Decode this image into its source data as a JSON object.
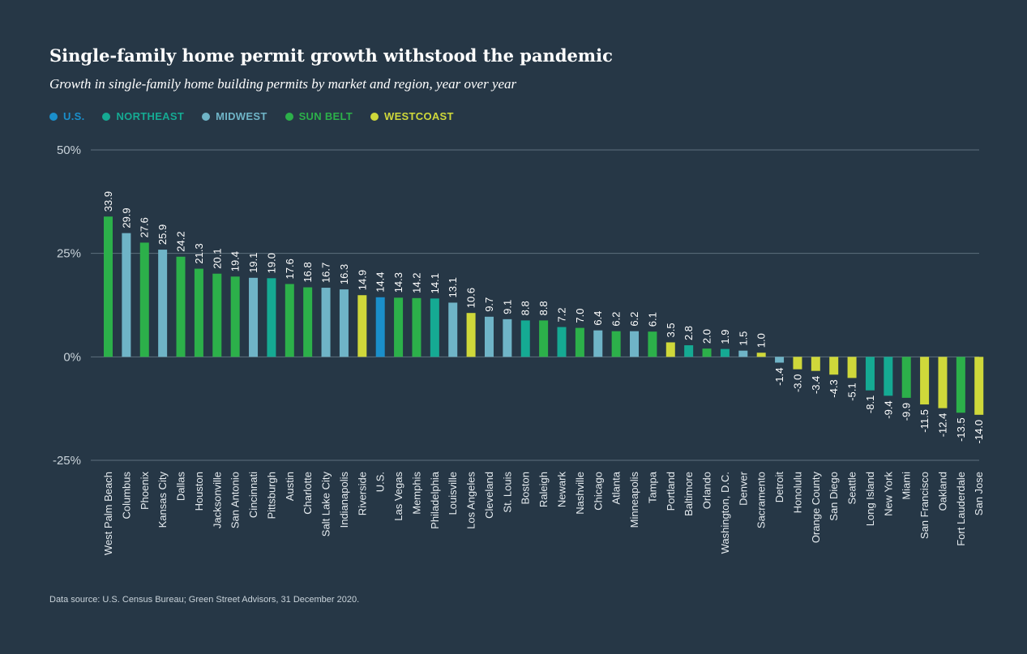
{
  "chart_data": {
    "type": "bar",
    "title": "Single-family home permit growth withstood the pandemic",
    "subtitle": "Growth in single-family home building permits by market and region, year over year",
    "source": "Data source: U.S. Census Bureau; Green Street Advisors, 31 December 2020.",
    "ylim": [
      -25,
      50
    ],
    "yticks": [
      50,
      25,
      0,
      -25
    ],
    "ytick_labels": [
      "50%",
      "25%",
      "0%",
      "-25%"
    ],
    "grid": true,
    "legend_placement": "top-left",
    "legend": [
      {
        "key": "us",
        "label": "U.S.",
        "color": "#1a8fcb"
      },
      {
        "key": "northeast",
        "label": "NORTHEAST",
        "color": "#15aa93"
      },
      {
        "key": "midwest",
        "label": "MIDWEST",
        "color": "#6fb4c7"
      },
      {
        "key": "sunbelt",
        "label": "SUN BELT",
        "color": "#2cb04a"
      },
      {
        "key": "westcoast",
        "label": "WESTCOAST",
        "color": "#cfd83a"
      }
    ],
    "categories": [
      "West Palm Beach",
      "Columbus",
      "Phoenix",
      "Kansas City",
      "Dallas",
      "Houston",
      "Jacksonville",
      "San Antonio",
      "Cincinnati",
      "Pittsburgh",
      "Austin",
      "Charlotte",
      "Salt Lake City",
      "Indianapolis",
      "Riverside",
      "U.S.",
      "Las Vegas",
      "Memphis",
      "Philadelphia",
      "Louisville",
      "Los Angeles",
      "Cleveland",
      "St. Louis",
      "Boston",
      "Raleigh",
      "Newark",
      "Nashville",
      "Chicago",
      "Atlanta",
      "Minneapolis",
      "Tampa",
      "Portland",
      "Baltimore",
      "Orlando",
      "Washington, D.C.",
      "Denver",
      "Sacramento",
      "Detroit",
      "Honolulu",
      "Orange County",
      "San Diego",
      "Seattle",
      "Long Island",
      "New York",
      "Miami",
      "San Francisco",
      "Oakland",
      "Fort Lauderdale",
      "San Jose"
    ],
    "values": [
      33.9,
      29.9,
      27.6,
      25.9,
      24.2,
      21.3,
      20.1,
      19.4,
      19.1,
      19.0,
      17.6,
      16.8,
      16.7,
      16.3,
      14.9,
      14.4,
      14.3,
      14.2,
      14.1,
      13.1,
      10.6,
      9.7,
      9.1,
      8.8,
      8.8,
      7.2,
      7.0,
      6.4,
      6.2,
      6.2,
      6.1,
      3.5,
      2.8,
      2.0,
      1.9,
      1.5,
      1.0,
      -1.4,
      -3.0,
      -3.4,
      -4.3,
      -5.1,
      -8.1,
      -9.4,
      -9.9,
      -11.5,
      -12.4,
      -13.5,
      -14.0
    ],
    "value_labels": [
      "33.9",
      "29.9",
      "27.6",
      "25.9",
      "24.2",
      "21.3",
      "20.1",
      "19.4",
      "19.1",
      "19.0",
      "17.6",
      "16.8",
      "16.7",
      "16.3",
      "14.9",
      "14.4",
      "14.3",
      "14.2",
      "14.1",
      "13.1",
      "10.6",
      "9.7",
      "9.1",
      "8.8",
      "8.8",
      "7.2",
      "7.0",
      "6.4",
      "6.2",
      "6.2",
      "6.1",
      "3.5",
      "2.8",
      "2.0",
      "1.9",
      "1.5",
      "1.0",
      "-1.4",
      "-3.0",
      "-3.4",
      "-4.3",
      "-5.1",
      "-8.1",
      "-9.4",
      "-9.9",
      "-11.5",
      "-12.4",
      "-13.5",
      "-14.0"
    ],
    "regions": [
      "sunbelt",
      "midwest",
      "sunbelt",
      "midwest",
      "sunbelt",
      "sunbelt",
      "sunbelt",
      "sunbelt",
      "midwest",
      "northeast",
      "sunbelt",
      "sunbelt",
      "midwest",
      "midwest",
      "westcoast",
      "us",
      "sunbelt",
      "sunbelt",
      "northeast",
      "midwest",
      "westcoast",
      "midwest",
      "midwest",
      "northeast",
      "sunbelt",
      "northeast",
      "sunbelt",
      "midwest",
      "sunbelt",
      "midwest",
      "sunbelt",
      "westcoast",
      "northeast",
      "sunbelt",
      "northeast",
      "midwest",
      "westcoast",
      "midwest",
      "westcoast",
      "westcoast",
      "westcoast",
      "westcoast",
      "northeast",
      "northeast",
      "sunbelt",
      "westcoast",
      "westcoast",
      "sunbelt",
      "westcoast"
    ]
  }
}
